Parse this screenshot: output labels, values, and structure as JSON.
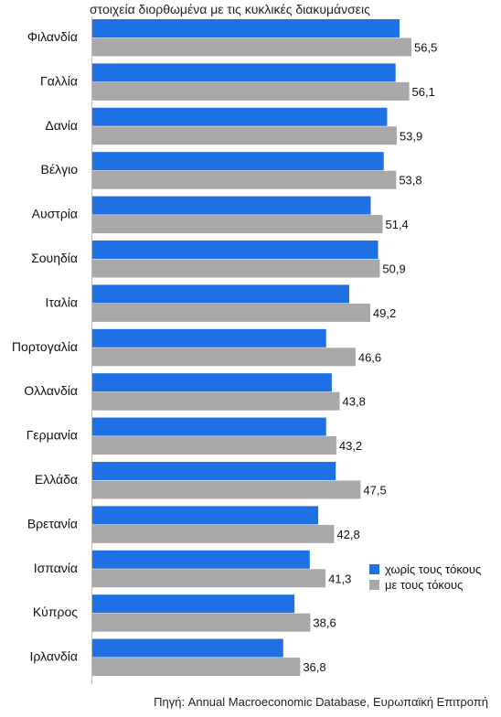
{
  "chart_data": {
    "type": "bar",
    "orientation": "horizontal",
    "subtitle": "στοιχεία διορθωμένα με τις κυκλικές διακυμάνσεις",
    "source": "Πηγή: Annual Macroeconomic Database, Ευρωπαϊκή Επιτροπή",
    "categories": [
      "Φιλανδία",
      "Γαλλία",
      "Δανία",
      "Βέλγιο",
      "Αυστρία",
      "Σουηδία",
      "Ιταλία",
      "Πορτογαλία",
      "Ολλανδία",
      "Γερμανία",
      "Ελλάδα",
      "Βρετανία",
      "Ισπανία",
      "Κύπρος",
      "Ιρλανδία"
    ],
    "series": [
      {
        "name": "χωρίς τους τόκους",
        "color": "#1f6fe5",
        "values": [
          54.4,
          53.7,
          52.2,
          51.6,
          49.3,
          50.6,
          45.5,
          41.4,
          42.4,
          41.4,
          43.1,
          40.0,
          38.5,
          35.8,
          33.8
        ]
      },
      {
        "name": "με τους τόκους",
        "color": "#a8a8a8",
        "values": [
          56.5,
          56.1,
          53.9,
          53.8,
          51.4,
          50.9,
          49.2,
          46.6,
          43.8,
          43.2,
          47.5,
          42.8,
          41.3,
          38.6,
          36.8
        ],
        "labels": [
          "56,5",
          "56,1",
          "53,9",
          "53,8",
          "51,4",
          "50,9",
          "49,2",
          "46,6",
          "43,8",
          "43,2",
          "47,5",
          "42,8",
          "41,3",
          "38,6",
          "36,8"
        ]
      }
    ],
    "xlim": [
      0,
      56.5
    ],
    "grid": false,
    "legend_position": "bottom-right"
  }
}
